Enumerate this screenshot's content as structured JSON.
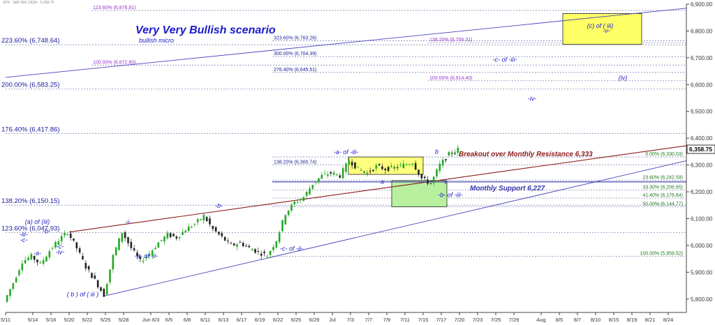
{
  "header": {
    "ticker_line": "SPX - S&P 500 CASH - 6,358.75"
  },
  "colors": {
    "fib_blue": "#1a1a9a",
    "fib_purple": "#9933cc",
    "fib_green": "#1e7a1e",
    "wave_label": "#1a1acc",
    "resistance": "#8b1a1a",
    "support": "#3333aa",
    "dotted": "#8888bb",
    "yellow_box": "#ffff66",
    "green_box": "#b8f0a0",
    "candle_up": "#22aa22",
    "candle_down": "#222222"
  },
  "chart_data": {
    "type": "candlestick",
    "title": "Very Very Bullish scenario",
    "subtitle": "bullish micro",
    "ylim": [
      5750,
      6900
    ],
    "y_ticks": [
      "5,800.00",
      "5,900.00",
      "6,000.00",
      "6,100.00",
      "6,200.00",
      "6,300.00",
      "6,400.00",
      "6,500.00",
      "6,600.00",
      "6,700.00",
      "6,800.00",
      "6,900.00"
    ],
    "y_tick_values": [
      5800,
      5900,
      6000,
      6100,
      6200,
      6300,
      6400,
      6500,
      6600,
      6700,
      6800,
      6900
    ],
    "last_price_label": "6,358.75",
    "last_price": 6358.75,
    "x_labels": [
      "5/11",
      "5/14",
      "5/16",
      "5/20",
      "5/22",
      "5/25",
      "5/28",
      "Jun 6/3",
      "6/5",
      "6/8",
      "6/11",
      "6/13",
      "6/17",
      "6/19",
      "6/22",
      "6/25",
      "6/29",
      "Jul",
      "7/3",
      "7/7",
      "7/9",
      "7/11",
      "7/15",
      "7/17",
      "7/20",
      "7/23",
      "7/25",
      "7/29",
      "Aug",
      "8/5",
      "8/7",
      "8/10",
      "8/15",
      "8/19",
      "8/21",
      "8/24"
    ],
    "x_label_index": [
      0,
      3,
      5,
      7,
      9,
      11,
      13,
      16,
      18,
      20,
      22,
      24,
      26,
      28,
      30,
      32,
      34,
      36,
      38,
      40,
      42,
      44,
      46,
      48,
      50,
      52,
      54,
      56,
      59,
      61,
      63,
      65,
      67,
      69,
      71,
      73
    ],
    "x_index_max": 75,
    "price_path": [
      [
        0,
        5790
      ],
      [
        1,
        5860
      ],
      [
        2,
        5940
      ],
      [
        3,
        5960
      ],
      [
        4,
        5930
      ],
      [
        5,
        5980
      ],
      [
        6,
        6020
      ],
      [
        7,
        6050
      ],
      [
        8,
        5990
      ],
      [
        9,
        5920
      ],
      [
        10,
        5870
      ],
      [
        11,
        5815
      ],
      [
        12,
        5960
      ],
      [
        13,
        6050
      ],
      [
        14,
        5990
      ],
      [
        15,
        5940
      ],
      [
        16,
        5970
      ],
      [
        17,
        6010
      ],
      [
        18,
        6040
      ],
      [
        19,
        6030
      ],
      [
        20,
        6060
      ],
      [
        21,
        6080
      ],
      [
        22,
        6110
      ],
      [
        23,
        6060
      ],
      [
        24,
        6030
      ],
      [
        25,
        6000
      ],
      [
        26,
        6010
      ],
      [
        27,
        5990
      ],
      [
        28,
        5975
      ],
      [
        29,
        5962
      ],
      [
        30,
        6020
      ],
      [
        31,
        6120
      ],
      [
        32,
        6160
      ],
      [
        33,
        6180
      ],
      [
        34,
        6230
      ],
      [
        35,
        6260
      ],
      [
        36,
        6270
      ],
      [
        37,
        6260
      ],
      [
        38,
        6318
      ],
      [
        39,
        6285
      ],
      [
        40,
        6270
      ],
      [
        41,
        6295
      ],
      [
        42,
        6285
      ],
      [
        43,
        6290
      ],
      [
        44,
        6300
      ],
      [
        45,
        6310
      ],
      [
        46,
        6250
      ],
      [
        47,
        6230
      ],
      [
        48,
        6300
      ],
      [
        49,
        6340
      ],
      [
        50,
        6358.75
      ]
    ],
    "fib_levels_left": [
      {
        "label": "223.60% (6,748.64)",
        "value": 6748.64
      },
      {
        "label": "200.00% (6,583.25)",
        "value": 6583.25
      },
      {
        "label": "176.40% (6,417.86)",
        "value": 6417.86
      },
      {
        "label": "138.20% (6,150.15)",
        "value": 6150.15
      },
      {
        "label": "123.60% (6,047.93)",
        "value": 6047.93
      }
    ],
    "fib_levels_mid": [
      {
        "label": "323.60% (6,763.26)",
        "value": 6763.26,
        "color": "blue"
      },
      {
        "label": "300.00% (6,704.39)",
        "value": 6704.39,
        "color": "blue"
      },
      {
        "label": "276.40% (6,645.51)",
        "value": 6645.51,
        "color": "blue"
      },
      {
        "label": "138.20% (6,300.74)",
        "value": 6300.74,
        "color": "blue"
      },
      {
        "label": "100.00% (6,672.80)",
        "value": 6672.8,
        "color": "purple"
      },
      {
        "label": "123.60% (6,876.81)",
        "value": 6876.81,
        "color": "purple"
      },
      {
        "label": "138.20% (6,756.31)",
        "value": 6756.31,
        "color": "purple"
      },
      {
        "label": "100.00% (6,614.40)",
        "value": 6614.4,
        "color": "purple"
      }
    ],
    "fib_levels_right": [
      {
        "label": "0.00% (6,330.03)",
        "value": 6330.03
      },
      {
        "label": "23.60% (6,242.59)",
        "value": 6242.59
      },
      {
        "label": "33.30% (6,206.65)",
        "value": 6206.65
      },
      {
        "label": "41.40% (6,176.64)",
        "value": 6176.64
      },
      {
        "label": "50.00% (6,144.77)",
        "value": 6144.77
      },
      {
        "label": "100.00% (5,959.52)",
        "value": 5959.52
      }
    ],
    "wave_labels": [
      {
        "text": "(c) of ( iii)",
        "x": 65.5,
        "y": 6812
      },
      {
        "text": "-v-",
        "x": 66.2,
        "y": 6793
      },
      {
        "text": "-c- of -iii-",
        "x": 55,
        "y": 6685
      },
      {
        "text": "(iv)",
        "x": 68,
        "y": 6618
      },
      {
        "text": "-iv-",
        "x": 58,
        "y": 6540
      },
      {
        "text": "-a- of -iii-",
        "x": 37.5,
        "y": 6340
      },
      {
        "text": "b",
        "x": 47.5,
        "y": 6342
      },
      {
        "text": "a",
        "x": 41.5,
        "y": 6230
      },
      {
        "text": "c",
        "x": 48.5,
        "y": 6230
      },
      {
        "text": "-b- of -iii-",
        "x": 49,
        "y": 6180
      },
      {
        "text": "-b-",
        "x": 23.5,
        "y": 6140
      },
      {
        "text": "-i-",
        "x": 13.5,
        "y": 6080
      },
      {
        "text": "(a) of (iii)",
        "x": 3.5,
        "y": 6080
      },
      {
        "text": "-b-",
        "x": 4.5,
        "y": 6045
      },
      {
        "text": "-iii-",
        "x": 2,
        "y": 6033
      },
      {
        "text": "-c-",
        "x": 2,
        "y": 6013
      },
      {
        "text": "-c-",
        "x": 6,
        "y": 5988
      },
      {
        "text": "-iv-",
        "x": 6,
        "y": 5967
      },
      {
        "text": "-a-",
        "x": 3.5,
        "y": 5963
      },
      {
        "text": "-a- of -ii-",
        "x": 15.5,
        "y": 5953
      },
      {
        "text": "-c- of -ii-",
        "x": 31.5,
        "y": 5980
      },
      {
        "text": "( b ) of ( iii )",
        "x": 8.5,
        "y": 5810
      }
    ],
    "annotations": {
      "resistance_label": "Breakout over Monthly Resistance 6,333",
      "support_label": "Monthly Support 6,227"
    }
  }
}
